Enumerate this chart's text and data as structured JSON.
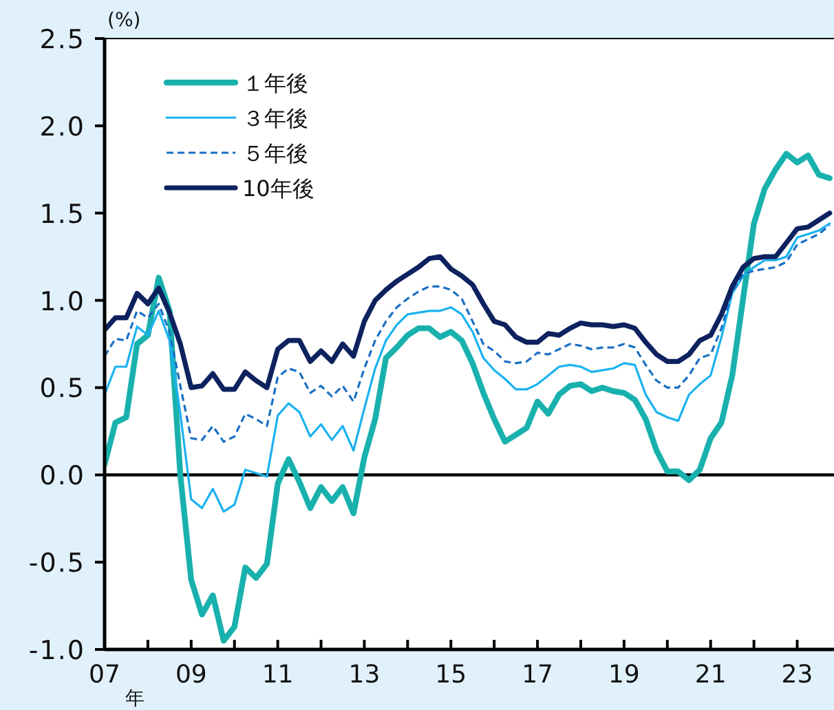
{
  "chart_data": {
    "type": "line",
    "ylabel": "(%)",
    "xlabel": "年",
    "x": [
      2007,
      2007.25,
      2007.5,
      2007.75,
      2008,
      2008.25,
      2008.5,
      2008.75,
      2009,
      2009.25,
      2009.5,
      2009.75,
      2010,
      2010.25,
      2010.5,
      2010.75,
      2011,
      2011.25,
      2011.5,
      2011.75,
      2012,
      2012.25,
      2012.5,
      2012.75,
      2013,
      2013.25,
      2013.5,
      2013.75,
      2014,
      2014.25,
      2014.5,
      2014.75,
      2015,
      2015.25,
      2015.5,
      2015.75,
      2016,
      2016.25,
      2016.5,
      2016.75,
      2017,
      2017.25,
      2017.5,
      2017.75,
      2018,
      2018.25,
      2018.5,
      2018.75,
      2019,
      2019.25,
      2019.5,
      2019.75,
      2020,
      2020.25,
      2020.5,
      2020.75,
      2021,
      2021.25,
      2021.5,
      2021.75,
      2022,
      2022.25,
      2022.5,
      2022.75,
      2023,
      2023.25,
      2023.5,
      2023.75
    ],
    "xlim": [
      2007,
      2023.85
    ],
    "xticks": [
      {
        "value": 2007,
        "label": "07"
      },
      {
        "value": 2008,
        "label": null
      },
      {
        "value": 2009,
        "label": "09"
      },
      {
        "value": 2010,
        "label": null
      },
      {
        "value": 2011,
        "label": "11"
      },
      {
        "value": 2012,
        "label": null
      },
      {
        "value": 2013,
        "label": "13"
      },
      {
        "value": 2014,
        "label": null
      },
      {
        "value": 2015,
        "label": "15"
      },
      {
        "value": 2016,
        "label": null
      },
      {
        "value": 2017,
        "label": "17"
      },
      {
        "value": 2018,
        "label": null
      },
      {
        "value": 2019,
        "label": "19"
      },
      {
        "value": 2020,
        "label": null
      },
      {
        "value": 2021,
        "label": "21"
      },
      {
        "value": 2022,
        "label": null
      },
      {
        "value": 2023,
        "label": "23"
      }
    ],
    "ylim": [
      -1,
      2.5
    ],
    "yticks": [
      {
        "value": -1,
        "label": "-1.0"
      },
      {
        "value": -0.5,
        "label": "-0.5"
      },
      {
        "value": 0,
        "label": "0.0"
      },
      {
        "value": 0.5,
        "label": "0.5"
      },
      {
        "value": 1,
        "label": "1.0"
      },
      {
        "value": 1.5,
        "label": "1.5"
      },
      {
        "value": 2,
        "label": "2.0"
      },
      {
        "value": 2.5,
        "label": "2.5"
      }
    ],
    "ref_lines": [
      {
        "axis": "y",
        "value": 0,
        "color": "#000000"
      }
    ],
    "grid": false,
    "legend": "top left",
    "marker": "none",
    "series": [
      {
        "name": "１年後",
        "color": "#19b1ad",
        "line_style": "solid",
        "values": [
          0.06,
          0.3,
          0.33,
          0.75,
          0.8,
          1.13,
          0.94,
          0.0,
          -0.6,
          -0.8,
          -0.69,
          -0.95,
          -0.87,
          -0.53,
          -0.59,
          -0.51,
          -0.05,
          0.09,
          -0.04,
          -0.19,
          -0.07,
          -0.15,
          -0.07,
          -0.22,
          0.1,
          0.32,
          0.67,
          0.73,
          0.8,
          0.84,
          0.84,
          0.79,
          0.82,
          0.77,
          0.64,
          0.47,
          0.32,
          0.19,
          0.23,
          0.27,
          0.42,
          0.35,
          0.46,
          0.51,
          0.52,
          0.48,
          0.5,
          0.48,
          0.47,
          0.43,
          0.32,
          0.14,
          0.02,
          0.02,
          -0.03,
          0.03,
          0.21,
          0.3,
          0.57,
          1.01,
          1.44,
          1.64,
          1.75,
          1.84,
          1.79,
          1.83,
          1.72,
          1.7
        ]
      },
      {
        "name": "３年後",
        "color": "#1ab2f0",
        "line_style": "solid",
        "values": [
          0.46,
          0.62,
          0.62,
          0.85,
          0.8,
          0.94,
          0.77,
          0.35,
          -0.14,
          -0.19,
          -0.08,
          -0.21,
          -0.17,
          0.03,
          0.01,
          -0.01,
          0.34,
          0.41,
          0.36,
          0.22,
          0.29,
          0.2,
          0.28,
          0.14,
          0.38,
          0.61,
          0.77,
          0.86,
          0.92,
          0.93,
          0.94,
          0.94,
          0.96,
          0.92,
          0.82,
          0.67,
          0.6,
          0.55,
          0.49,
          0.49,
          0.52,
          0.57,
          0.62,
          0.63,
          0.62,
          0.59,
          0.6,
          0.61,
          0.64,
          0.63,
          0.46,
          0.36,
          0.33,
          0.31,
          0.46,
          0.52,
          0.57,
          0.79,
          1.04,
          1.14,
          1.19,
          1.23,
          1.23,
          1.25,
          1.36,
          1.38,
          1.4,
          1.44
        ]
      },
      {
        "name": "５年後",
        "color": "#1a70c4",
        "line_style": "dashed",
        "values": [
          0.68,
          0.78,
          0.77,
          0.94,
          0.9,
          0.98,
          0.82,
          0.51,
          0.21,
          0.2,
          0.28,
          0.19,
          0.22,
          0.35,
          0.32,
          0.28,
          0.56,
          0.61,
          0.59,
          0.47,
          0.51,
          0.45,
          0.51,
          0.42,
          0.61,
          0.77,
          0.88,
          0.96,
          1.01,
          1.05,
          1.08,
          1.08,
          1.06,
          1.01,
          0.88,
          0.75,
          0.71,
          0.65,
          0.64,
          0.65,
          0.7,
          0.69,
          0.72,
          0.75,
          0.74,
          0.72,
          0.73,
          0.73,
          0.75,
          0.73,
          0.63,
          0.54,
          0.5,
          0.5,
          0.57,
          0.67,
          0.69,
          0.84,
          1.05,
          1.15,
          1.17,
          1.18,
          1.19,
          1.22,
          1.32,
          1.35,
          1.38,
          1.43
        ]
      },
      {
        "name": "10年後",
        "color": "#0d225e",
        "line_style": "solid",
        "values": [
          0.83,
          0.9,
          0.9,
          1.04,
          0.98,
          1.07,
          0.93,
          0.75,
          0.5,
          0.51,
          0.58,
          0.49,
          0.49,
          0.59,
          0.54,
          0.5,
          0.72,
          0.77,
          0.77,
          0.65,
          0.71,
          0.65,
          0.75,
          0.68,
          0.88,
          1.0,
          1.06,
          1.11,
          1.15,
          1.19,
          1.24,
          1.25,
          1.18,
          1.14,
          1.09,
          0.98,
          0.88,
          0.86,
          0.79,
          0.76,
          0.76,
          0.81,
          0.8,
          0.84,
          0.87,
          0.86,
          0.86,
          0.85,
          0.86,
          0.84,
          0.76,
          0.69,
          0.65,
          0.65,
          0.69,
          0.77,
          0.8,
          0.92,
          1.08,
          1.19,
          1.24,
          1.25,
          1.25,
          1.33,
          1.41,
          1.42,
          1.46,
          1.5
        ]
      }
    ]
  }
}
